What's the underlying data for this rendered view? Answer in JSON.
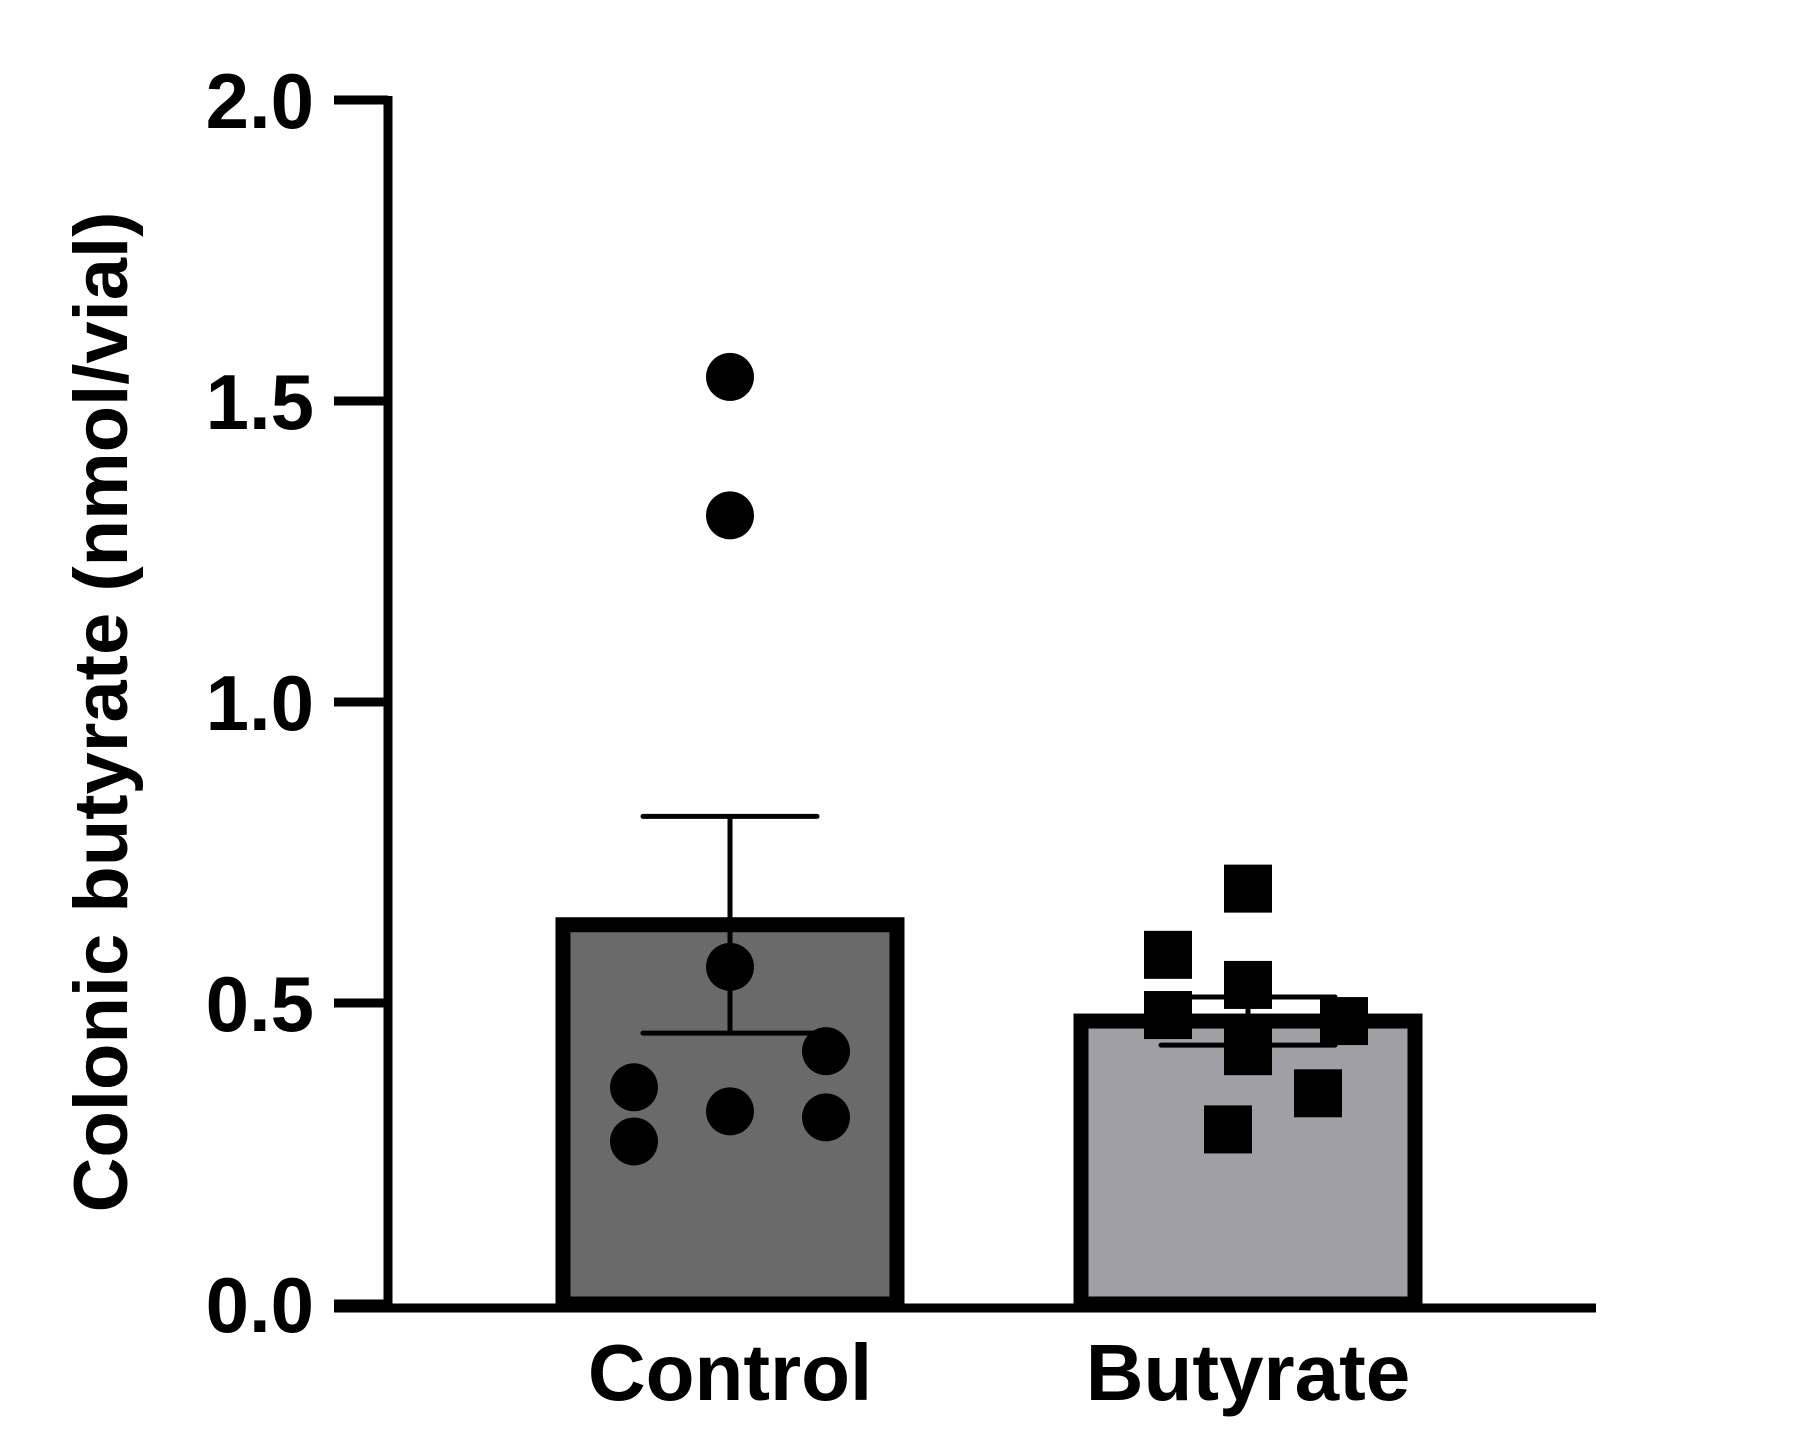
{
  "chart_data": {
    "type": "bar",
    "title": "",
    "xlabel": "",
    "ylabel": "Colonic butyrate (nmol/vial)",
    "ylim": [
      0,
      2.0
    ],
    "yticks": [
      {
        "value": 0,
        "label": "0.0"
      },
      {
        "value": 0.5,
        "label": "0.5"
      },
      {
        "value": 1.0,
        "label": "1.0"
      },
      {
        "value": 1.5,
        "label": "1.5"
      },
      {
        "value": 2.0,
        "label": "2.0"
      }
    ],
    "categories": [
      "Control",
      "Butyrate"
    ],
    "values": [
      0.63,
      0.47
    ],
    "errors": [
      0.18,
      0.04
    ],
    "bar_colors": [
      "#6a6a6a",
      "#a0a0a4"
    ],
    "points": [
      {
        "marker": "circle",
        "values": [
          1.54,
          1.31,
          0.56,
          0.36,
          0.27,
          0.32,
          0.42,
          0.31
        ]
      },
      {
        "marker": "square",
        "values": [
          0.69,
          0.58,
          0.53,
          0.48,
          0.47,
          0.42,
          0.35,
          0.29
        ]
      }
    ],
    "grid": false,
    "legend": "none"
  }
}
